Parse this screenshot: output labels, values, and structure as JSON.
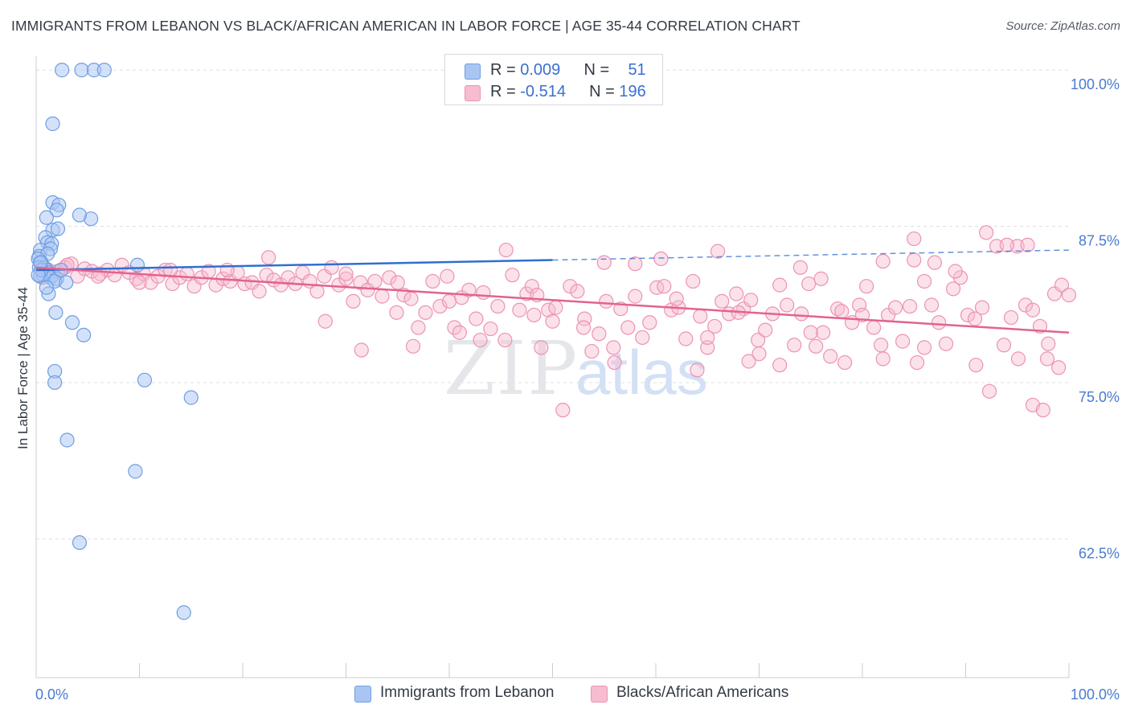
{
  "title": "IMMIGRANTS FROM LEBANON VS BLACK/AFRICAN AMERICAN IN LABOR FORCE | AGE 35-44 CORRELATION CHART",
  "source": "Source: ZipAtlas.com",
  "watermark": {
    "zip": "ZIP",
    "atlas": "atlas"
  },
  "legend": {
    "series1": {
      "r_label": "R = ",
      "r_value": "0.009",
      "n_label": "N = ",
      "n_value": "51"
    },
    "series2": {
      "r_label": "R = ",
      "r_value": "-0.514",
      "n_label": "N = ",
      "n_value": "196"
    }
  },
  "colors": {
    "blue_fill": "#a9c6f3",
    "blue_stroke": "#6f9ee3",
    "blue_line": "#2f6fd0",
    "pink_fill": "#f7bcd0",
    "pink_stroke": "#ec93b3",
    "pink_line": "#e2638f",
    "grid": "#dddfe3",
    "axis_text": "#4a7bd0"
  },
  "chart_data": {
    "type": "scatter",
    "title": "IMMIGRANTS FROM LEBANON VS BLACK/AFRICAN AMERICAN IN LABOR FORCE | AGE 35-44 CORRELATION CHART",
    "xlabel": "",
    "ylabel": "In Labor Force | Age 35-44",
    "xlim": [
      0,
      100
    ],
    "ylim": [
      51.4,
      101.1
    ],
    "x_tick_labels": [
      "0.0%",
      "100.0%"
    ],
    "y_ticks": [
      62.5,
      75.0,
      87.5,
      100.0
    ],
    "y_tick_labels": [
      "62.5%",
      "75.0%",
      "87.5%",
      "100.0%"
    ],
    "grid": true,
    "legend_position": "top-center",
    "series": [
      {
        "name": "Immigrants from Lebanon",
        "color": "blue",
        "trend": {
          "x": [
            0,
            100
          ],
          "y": [
            84.0,
            85.6
          ],
          "solid_until_x": 50
        },
        "points": [
          [
            2.5,
            100
          ],
          [
            4.4,
            100
          ],
          [
            5.6,
            100
          ],
          [
            6.6,
            100
          ],
          [
            1.6,
            95.7
          ],
          [
            1.6,
            89.4
          ],
          [
            2.2,
            89.2
          ],
          [
            2.0,
            88.8
          ],
          [
            5.3,
            88.1
          ],
          [
            4.2,
            88.4
          ],
          [
            1.0,
            88.2
          ],
          [
            1.6,
            87.2
          ],
          [
            2.1,
            87.3
          ],
          [
            0.9,
            86.6
          ],
          [
            1.1,
            86.2
          ],
          [
            1.5,
            86.1
          ],
          [
            0.4,
            85.6
          ],
          [
            1.4,
            85.7
          ],
          [
            0.3,
            85.1
          ],
          [
            1.1,
            85.3
          ],
          [
            0.2,
            84.9
          ],
          [
            0.5,
            84.6
          ],
          [
            0.3,
            84.2
          ],
          [
            0.8,
            84.2
          ],
          [
            1.0,
            84.0
          ],
          [
            1.2,
            83.8
          ],
          [
            0.7,
            83.6
          ],
          [
            1.6,
            83.6
          ],
          [
            0.4,
            83.5
          ],
          [
            1.4,
            83.4
          ],
          [
            2.0,
            83.3
          ],
          [
            1.8,
            83.1
          ],
          [
            2.9,
            83.0
          ],
          [
            9.8,
            84.4
          ],
          [
            0.5,
            84.0
          ],
          [
            1.2,
            82.1
          ],
          [
            1.9,
            80.6
          ],
          [
            3.5,
            79.8
          ],
          [
            4.6,
            78.8
          ],
          [
            1.8,
            75.9
          ],
          [
            1.8,
            75.0
          ],
          [
            10.5,
            75.2
          ],
          [
            15.0,
            73.8
          ],
          [
            3.0,
            70.4
          ],
          [
            9.6,
            67.9
          ],
          [
            4.2,
            62.2
          ],
          [
            14.3,
            56.6
          ],
          [
            0.4,
            84.6
          ],
          [
            2.4,
            84.0
          ],
          [
            0.2,
            83.6
          ],
          [
            1.0,
            82.6
          ]
        ]
      },
      {
        "name": "Blacks/African Americans",
        "color": "pink",
        "trend": {
          "x": [
            0,
            100
          ],
          "y": [
            84.2,
            79.0
          ]
        },
        "points": [
          [
            0.6,
            83.4
          ],
          [
            1.2,
            84.0
          ],
          [
            2.1,
            83.9
          ],
          [
            2.8,
            84.2
          ],
          [
            3.4,
            84.5
          ],
          [
            4.0,
            83.5
          ],
          [
            4.7,
            84.1
          ],
          [
            5.4,
            83.9
          ],
          [
            6.2,
            83.7
          ],
          [
            6.9,
            84.0
          ],
          [
            7.6,
            83.6
          ],
          [
            8.3,
            84.4
          ],
          [
            9.0,
            83.8
          ],
          [
            9.7,
            83.3
          ],
          [
            10.4,
            83.7
          ],
          [
            11.1,
            83.0
          ],
          [
            11.8,
            83.5
          ],
          [
            12.5,
            84.0
          ],
          [
            13.2,
            82.9
          ],
          [
            13.9,
            83.4
          ],
          [
            14.6,
            83.7
          ],
          [
            15.3,
            82.7
          ],
          [
            16.0,
            83.4
          ],
          [
            16.7,
            83.9
          ],
          [
            17.4,
            82.8
          ],
          [
            18.1,
            83.3
          ],
          [
            18.8,
            83.1
          ],
          [
            19.5,
            83.8
          ],
          [
            20.2,
            82.9
          ],
          [
            20.9,
            83.0
          ],
          [
            21.6,
            82.3
          ],
          [
            22.3,
            83.6
          ],
          [
            23.0,
            83.2
          ],
          [
            23.7,
            82.8
          ],
          [
            24.4,
            83.4
          ],
          [
            25.1,
            82.9
          ],
          [
            25.8,
            83.8
          ],
          [
            26.5,
            83.1
          ],
          [
            27.2,
            82.3
          ],
          [
            27.9,
            83.5
          ],
          [
            28.6,
            84.2
          ],
          [
            29.3,
            82.8
          ],
          [
            30.0,
            83.3
          ],
          [
            30.7,
            81.5
          ],
          [
            31.4,
            83.0
          ],
          [
            32.1,
            82.4
          ],
          [
            32.8,
            83.1
          ],
          [
            33.5,
            81.9
          ],
          [
            34.2,
            83.4
          ],
          [
            34.9,
            80.6
          ],
          [
            35.6,
            82.0
          ],
          [
            36.3,
            81.7
          ],
          [
            37.0,
            79.4
          ],
          [
            37.7,
            80.6
          ],
          [
            38.4,
            83.1
          ],
          [
            39.1,
            81.1
          ],
          [
            39.8,
            83.5
          ],
          [
            40.5,
            79.4
          ],
          [
            41.2,
            81.8
          ],
          [
            41.9,
            82.4
          ],
          [
            42.6,
            80.1
          ],
          [
            43.3,
            82.2
          ],
          [
            44.0,
            79.3
          ],
          [
            44.7,
            81.1
          ],
          [
            45.4,
            78.4
          ],
          [
            46.1,
            83.6
          ],
          [
            46.8,
            80.8
          ],
          [
            47.5,
            82.1
          ],
          [
            48.2,
            80.4
          ],
          [
            48.9,
            77.8
          ],
          [
            49.6,
            80.8
          ],
          [
            50.3,
            81.0
          ],
          [
            51.0,
            72.8
          ],
          [
            51.7,
            82.7
          ],
          [
            52.4,
            82.3
          ],
          [
            53.1,
            80.1
          ],
          [
            53.8,
            77.5
          ],
          [
            54.5,
            78.9
          ],
          [
            55.2,
            81.5
          ],
          [
            55.9,
            77.8
          ],
          [
            56.6,
            80.9
          ],
          [
            57.3,
            79.4
          ],
          [
            58.0,
            81.9
          ],
          [
            58.7,
            78.6
          ],
          [
            59.4,
            79.8
          ],
          [
            60.1,
            82.6
          ],
          [
            60.8,
            82.7
          ],
          [
            61.5,
            80.8
          ],
          [
            62.2,
            81.0
          ],
          [
            62.9,
            78.5
          ],
          [
            63.6,
            83.1
          ],
          [
            64.3,
            80.3
          ],
          [
            65.0,
            77.8
          ],
          [
            65.7,
            79.5
          ],
          [
            66.4,
            81.5
          ],
          [
            67.1,
            80.5
          ],
          [
            67.8,
            82.1
          ],
          [
            68.5,
            80.9
          ],
          [
            69.2,
            81.6
          ],
          [
            69.9,
            78.4
          ],
          [
            70.6,
            79.2
          ],
          [
            71.3,
            80.5
          ],
          [
            72.0,
            82.8
          ],
          [
            72.7,
            81.2
          ],
          [
            73.4,
            78.0
          ],
          [
            74.1,
            80.5
          ],
          [
            74.8,
            82.9
          ],
          [
            75.5,
            77.9
          ],
          [
            76.2,
            79.0
          ],
          [
            76.9,
            77.1
          ],
          [
            77.6,
            80.9
          ],
          [
            78.3,
            76.6
          ],
          [
            79.0,
            79.8
          ],
          [
            79.7,
            81.2
          ],
          [
            80.4,
            82.7
          ],
          [
            81.1,
            79.4
          ],
          [
            81.8,
            78.0
          ],
          [
            82.5,
            80.4
          ],
          [
            83.2,
            81.0
          ],
          [
            83.9,
            78.3
          ],
          [
            84.6,
            81.1
          ],
          [
            85.3,
            76.6
          ],
          [
            86.0,
            83.1
          ],
          [
            86.7,
            81.2
          ],
          [
            87.4,
            79.8
          ],
          [
            88.1,
            78.1
          ],
          [
            88.8,
            82.5
          ],
          [
            89.5,
            83.4
          ],
          [
            90.2,
            80.4
          ],
          [
            90.9,
            80.1
          ],
          [
            91.6,
            81.0
          ],
          [
            92.3,
            74.3
          ],
          [
            93.0,
            85.9
          ],
          [
            93.7,
            78.0
          ],
          [
            94.4,
            80.2
          ],
          [
            95.1,
            76.9
          ],
          [
            95.8,
            81.2
          ],
          [
            96.5,
            80.8
          ],
          [
            97.2,
            79.5
          ],
          [
            97.9,
            76.9
          ],
          [
            98.6,
            82.1
          ],
          [
            99.3,
            82.8
          ],
          [
            13.0,
            84.0
          ],
          [
            22.5,
            85.0
          ],
          [
            35.0,
            83.0
          ],
          [
            48.0,
            82.7
          ],
          [
            58.0,
            84.5
          ],
          [
            66.0,
            85.5
          ],
          [
            74.0,
            84.2
          ],
          [
            82.0,
            84.7
          ],
          [
            89.0,
            83.9
          ],
          [
            95.0,
            85.9
          ],
          [
            96.0,
            86.0
          ],
          [
            94.0,
            86.0
          ],
          [
            92.0,
            87.0
          ],
          [
            85.0,
            86.5
          ],
          [
            75.0,
            79.0
          ],
          [
            65.0,
            78.6
          ],
          [
            53.0,
            79.4
          ],
          [
            41.0,
            79.0
          ],
          [
            31.5,
            77.6
          ],
          [
            28.0,
            79.9
          ],
          [
            45.5,
            85.6
          ],
          [
            55.0,
            84.6
          ],
          [
            62.0,
            81.7
          ],
          [
            68.0,
            80.6
          ],
          [
            78.0,
            80.7
          ],
          [
            86.0,
            77.8
          ],
          [
            91.0,
            76.4
          ],
          [
            96.5,
            73.2
          ],
          [
            97.5,
            72.8
          ],
          [
            98.0,
            78.1
          ],
          [
            99.0,
            76.2
          ],
          [
            85.0,
            84.8
          ],
          [
            80.0,
            80.4
          ],
          [
            72.0,
            76.4
          ],
          [
            60.5,
            84.9
          ],
          [
            48.5,
            82.0
          ],
          [
            40.0,
            81.5
          ],
          [
            30.0,
            83.7
          ],
          [
            18.5,
            84.0
          ],
          [
            10.0,
            83.0
          ],
          [
            6.0,
            83.5
          ],
          [
            3.0,
            84.4
          ],
          [
            1.0,
            84.0
          ],
          [
            70.0,
            77.3
          ],
          [
            64.0,
            76.0
          ],
          [
            56.0,
            76.6
          ],
          [
            50.0,
            79.9
          ],
          [
            43.0,
            78.4
          ],
          [
            36.5,
            77.9
          ],
          [
            100.0,
            82.0
          ],
          [
            87.0,
            84.6
          ],
          [
            82.0,
            76.9
          ],
          [
            76.0,
            83.3
          ],
          [
            69.0,
            76.7
          ]
        ]
      }
    ]
  },
  "bottom_legend": {
    "item1": "Immigrants from Lebanon",
    "item2": "Blacks/African Americans"
  }
}
